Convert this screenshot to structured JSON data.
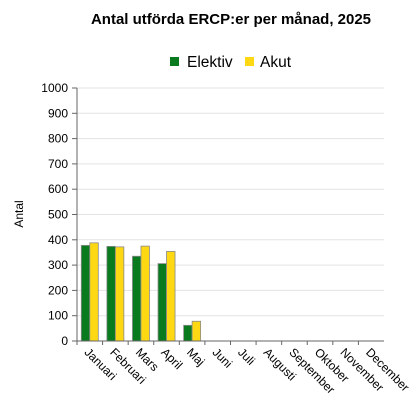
{
  "chart_data": {
    "type": "bar",
    "title": "Antal utförda ERCP:er per månad, 2025",
    "ylabel": "Antal",
    "xlabel": "",
    "ylim": [
      0,
      1000
    ],
    "yticks": [
      0,
      100,
      200,
      300,
      400,
      500,
      600,
      700,
      800,
      900,
      1000
    ],
    "grid": true,
    "legend_position": "top",
    "categories": [
      "Januari",
      "Februari",
      "Mars",
      "April",
      "Maj",
      "Juni",
      "Juli",
      "Augusti",
      "September",
      "Oktober",
      "November",
      "December"
    ],
    "series": [
      {
        "name": "Elektiv",
        "color": "#0a7a1e",
        "values": [
          378,
          374,
          335,
          306,
          62,
          0,
          0,
          0,
          0,
          0,
          0,
          0
        ]
      },
      {
        "name": "Akut",
        "color": "#ffd814",
        "values": [
          388,
          372,
          375,
          354,
          78,
          0,
          0,
          0,
          0,
          0,
          0,
          0
        ]
      }
    ]
  }
}
